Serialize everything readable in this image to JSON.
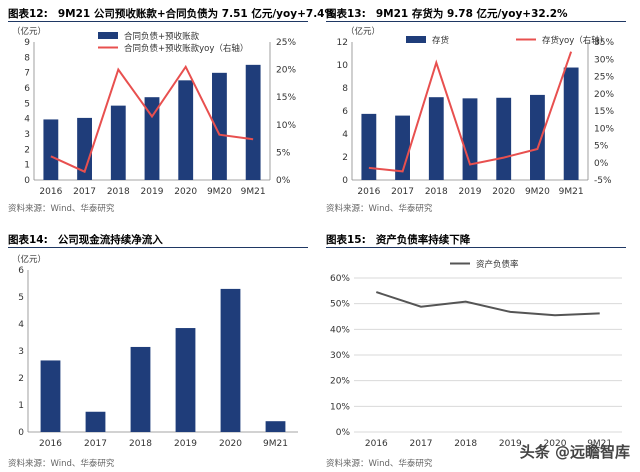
{
  "colors": {
    "bar": "#1f3d7a",
    "line": "#e8504f",
    "ratio_line": "#555555",
    "grid": "#d9d9d9",
    "title_rule": "#1f3864"
  },
  "chart_data": [
    {
      "id": "fig12",
      "type": "bar",
      "figure_label": "图表12:",
      "title": "9M21 公司预收账款+合同负债为 7.51 亿元/yoy+7.4%",
      "unit_label": "（亿元）",
      "categories": [
        "2016",
        "2017",
        "2018",
        "2019",
        "2020",
        "9M20",
        "9M21"
      ],
      "series": [
        {
          "name": "合同负债+预收账款",
          "type": "bar",
          "axis": "left",
          "values": [
            3.95,
            4.05,
            4.85,
            5.4,
            6.5,
            6.99,
            7.51
          ]
        },
        {
          "name": "合同负债+预收账款yoy（右轴）",
          "type": "line",
          "axis": "right",
          "values": [
            4.3,
            1.5,
            20.0,
            11.5,
            20.5,
            8.2,
            7.4
          ]
        }
      ],
      "ylim_left": [
        0,
        9
      ],
      "yticks_left": [
        "0",
        "1",
        "2",
        "3",
        "4",
        "5",
        "6",
        "7",
        "8",
        "9"
      ],
      "ylim_right": [
        0,
        25
      ],
      "yticks_right": [
        "0%",
        "5%",
        "10%",
        "15%",
        "20%",
        "25%"
      ],
      "source": "资料来源：Wind、华泰研究"
    },
    {
      "id": "fig13",
      "type": "bar",
      "figure_label": "图表13:",
      "title": "9M21 存货为 9.78 亿元/yoy+32.2%",
      "unit_label": "（亿元）",
      "categories": [
        "2016",
        "2017",
        "2018",
        "2019",
        "2020",
        "9M20",
        "9M21"
      ],
      "series": [
        {
          "name": "存货",
          "type": "bar",
          "axis": "left",
          "values": [
            5.75,
            5.6,
            7.2,
            7.1,
            7.15,
            7.4,
            9.78
          ]
        },
        {
          "name": "存货yoy（右轴）",
          "type": "line",
          "axis": "right",
          "values": [
            -1.5,
            -2.5,
            29.0,
            -0.5,
            1.5,
            4.0,
            32.2
          ]
        }
      ],
      "ylim_left": [
        0,
        12
      ],
      "yticks_left": [
        "0",
        "2",
        "4",
        "6",
        "8",
        "10",
        "12"
      ],
      "ylim_right": [
        -5,
        35
      ],
      "yticks_right": [
        "-5%",
        "0%",
        "5%",
        "10%",
        "15%",
        "20%",
        "25%",
        "30%",
        "35%"
      ],
      "source": "资料来源：Wind、华泰研究"
    },
    {
      "id": "fig14",
      "type": "bar",
      "figure_label": "图表14:",
      "title": "公司现金流持续净流入",
      "unit_label": "（亿元）",
      "categories": [
        "2016",
        "2017",
        "2018",
        "2019",
        "2020",
        "9M21"
      ],
      "series": [
        {
          "name": "现金净流量",
          "type": "bar",
          "axis": "left",
          "values": [
            2.65,
            0.75,
            3.15,
            3.85,
            5.3,
            0.4
          ]
        }
      ],
      "ylim_left": [
        0,
        6
      ],
      "yticks_left": [
        "0",
        "1",
        "2",
        "3",
        "4",
        "5",
        "6"
      ],
      "source": "资料来源：Wind、华泰研究"
    },
    {
      "id": "fig15",
      "type": "line",
      "figure_label": "图表15:",
      "title": "资产负债率持续下降",
      "categories": [
        "2016",
        "2017",
        "2018",
        "2019",
        "2020",
        "9M21"
      ],
      "series": [
        {
          "name": "资产负债率",
          "type": "line",
          "axis": "left",
          "values": [
            54.5,
            48.8,
            50.8,
            46.8,
            45.5,
            46.2
          ]
        }
      ],
      "ylim_left": [
        0,
        60
      ],
      "yticks_left": [
        "0%",
        "10%",
        "20%",
        "30%",
        "40%",
        "50%",
        "60%"
      ],
      "source": "资料来源：Wind、华泰研究"
    }
  ],
  "watermark": "头条 @远瞻智库"
}
